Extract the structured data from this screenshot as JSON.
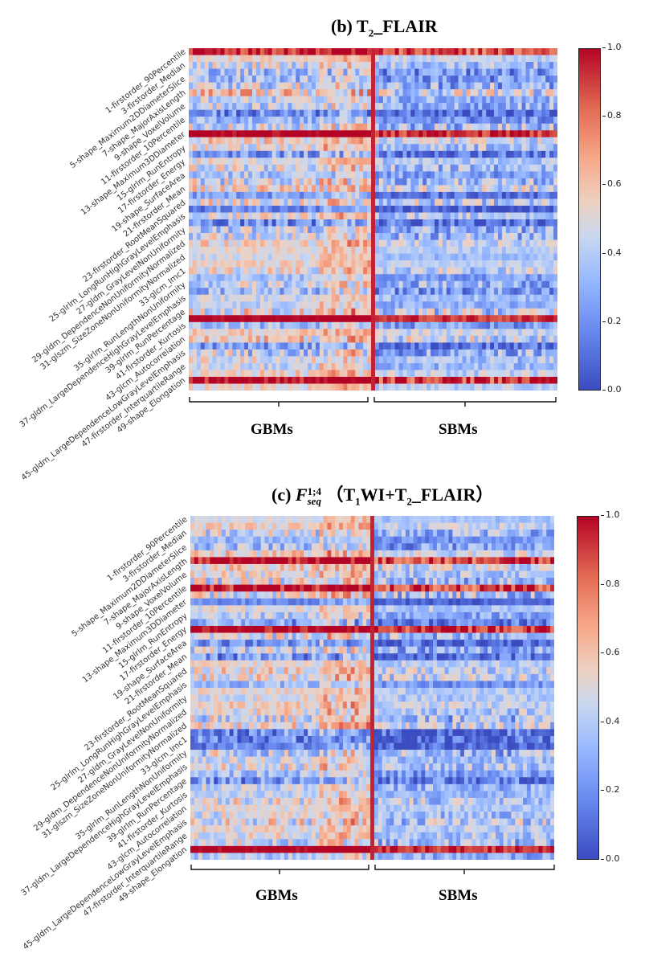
{
  "chart_data": [
    {
      "type": "heatmap",
      "panel": "(b)",
      "title": "(b) T2_FLAIR",
      "title_parts": {
        "label": "(b)",
        "prefix": "T",
        "sub": "2",
        "rest": "_FLAIR"
      },
      "rows": 50,
      "columns": 93,
      "group_split_column": 46,
      "groups": [
        "GBMs",
        "SBMs"
      ],
      "ytick_labels": [
        "1-firstorder_90Percentile",
        "3-firstorder_Median",
        "5-shape_Maximum2DDiameterSlice",
        "7-shape_MajorAxisLength",
        "9-shape_VoxelVolume",
        "11-firstorder_10Percentile",
        "13-shape_Maximum3DDiameter",
        "15-glrlm_RunEntropy",
        "17-firstorder_Energy",
        "19-shape_SurfaceArea",
        "21-firstorder_Mean",
        "23-firstorder_RootMeanSquared",
        "25-glrlm_LongRunHighGrayLevelEmphasis",
        "27-gldm_GrayLevelNonUniformity",
        "29-gldm_DependenceNonUniformityNormalized",
        "31-glszm_SizeZoneNonUniformityNormalized",
        "33-glcm_Imc1",
        "35-glrlm_RunLengthNonUniformity",
        "37-gldm_LargeDependenceHighGrayLevelEmphasis",
        "39-glrlm_RunPercentage",
        "41-firstorder_Kurtosis",
        "43-glcm_Autocorrelation",
        "45-gldm_LargeDependenceLowGrayLevelEmphasis",
        "47-firstorder_InterquartileRange",
        "49-shape_Elongation"
      ],
      "colorbar": {
        "min": 0.0,
        "max": 1.0,
        "ticks": [
          "0.0",
          "0.2",
          "0.4",
          "0.6",
          "0.8",
          "1.0"
        ],
        "colormap": "coolwarm"
      }
    },
    {
      "type": "heatmap",
      "panel": "(c)",
      "title": "(c) F_seq^{1;4} (T1WI+T2_FLAIR)",
      "title_parts": {
        "label": "(c)",
        "symbol": "F",
        "sub": "seq",
        "sup": "1;4",
        "open": "（T",
        "sub2": "1",
        "mid": "WI+T",
        "sub3": "2",
        "rest": "_FLAIR）"
      },
      "rows": 50,
      "columns": 93,
      "group_split_column": 46,
      "groups": [
        "GBMs",
        "SBMs"
      ],
      "ytick_labels": [
        "1-firstorder_90Percentile",
        "3-firstorder_Median",
        "5-shape_Maximum2DDiameterSlice",
        "7-shape_MajorAxisLength",
        "9-shape_VoxelVolume",
        "11-firstorder_10Percentile",
        "13-shape_Maximum3DDiameter",
        "15-glrlm_RunEntropy",
        "17-firstorder_Energy",
        "19-shape_SurfaceArea",
        "21-firstorder_Mean",
        "23-firstorder_RootMeanSquared",
        "25-glrlm_LongRunHighGrayLevelEmphasis",
        "27-gldm_GrayLevelNonUniformity",
        "29-gldm_DependenceNonUniformityNormalized",
        "31-glszm_SizeZoneNonUniformityNormalized",
        "33-glcm_Imc1",
        "35-glrlm_RunLengthNonUniformity",
        "37-gldm_LargeDependenceHighGrayLevelEmphasis",
        "39-glrlm_RunPercentage",
        "41-firstorder_Kurtosis",
        "43-glcm_Autocorrelation",
        "45-gldm_LargeDependenceLowGrayLevelEmphasis",
        "47-firstorder_InterquartileRange",
        "49-shape_Elongation"
      ],
      "colorbar": {
        "min": 0.0,
        "max": 1.0,
        "ticks": [
          "0.0",
          "0.2",
          "0.4",
          "0.6",
          "0.8",
          "1.0"
        ],
        "colormap": "coolwarm"
      }
    }
  ]
}
